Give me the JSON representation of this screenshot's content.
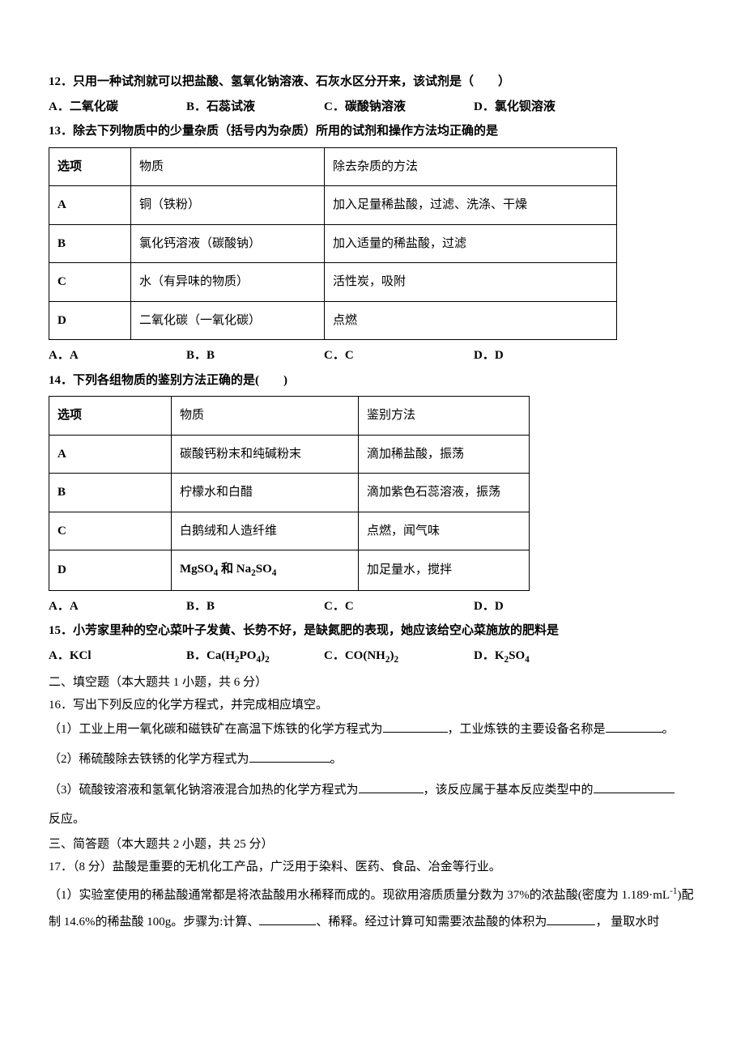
{
  "q12": {
    "text": "12．只用一种试剂就可以把盐酸、氢氧化钠溶液、石灰水区分开来，该试剂是（　　）",
    "a": "A．二氧化碳",
    "b": "B．石蕊试液",
    "c": "C．碳酸钠溶液",
    "d": "D．氯化钡溶液"
  },
  "q13": {
    "text": "13．除去下列物质中的少量杂质（括号内为杂质）所用的试剂和操作方法均正确的是",
    "header": {
      "c1": "选项",
      "c2": "物质",
      "c3": "除去杂质的方法"
    },
    "rows": [
      {
        "c1": "A",
        "c2": "铜（铁粉）",
        "c3": "加入足量稀盐酸，过滤、洗涤、干燥"
      },
      {
        "c1": "B",
        "c2": "氯化钙溶液（碳酸钠）",
        "c3": "加入适量的稀盐酸，过滤"
      },
      {
        "c1": "C",
        "c2": "水（有异味的物质）",
        "c3": "活性炭，吸附"
      },
      {
        "c1": "D",
        "c2": "二氧化碳（一氧化碳）",
        "c3": "点燃"
      }
    ],
    "a": "A．A",
    "b": "B．B",
    "c": "C．C",
    "d": "D．D"
  },
  "q14": {
    "text": "14．下列各组物质的鉴别方法正确的是(　　)",
    "header": {
      "c1": "选项",
      "c2": "物质",
      "c3": "鉴别方法"
    },
    "rows": [
      {
        "c1": "A",
        "c2": "碳酸钙粉末和纯碱粉末",
        "c3": "滴加稀盐酸，振荡"
      },
      {
        "c1": "B",
        "c2": "柠檬水和白醋",
        "c3": "滴加紫色石蕊溶液，振荡"
      },
      {
        "c1": "C",
        "c2": "白鹅绒和人造纤维",
        "c3": "点燃，闻气味"
      },
      {
        "c1": "D",
        "c2_html": "MgSO<sub>4</sub> 和 Na<sub>2</sub>SO<sub>4</sub>",
        "c3": "加足量水，搅拌"
      }
    ],
    "a": "A．A",
    "b": "B．B",
    "c": "C．C",
    "d": "D．D"
  },
  "q15": {
    "text": "15．小芳家里种的空心菜叶子发黄、长势不好，是缺氮肥的表现，她应该给空心菜施放的肥料是",
    "a": "A．KCl",
    "b_html": "B．Ca(H<sub>2</sub>PO<sub>4</sub>)<sub>2</sub>",
    "c_html": "C．CO(NH<sub>2</sub>)<sub>2</sub>",
    "d_html": "D．K<sub>2</sub>SO<sub>4</sub>"
  },
  "section2": "二、填空题（本大题共 1 小题，共 6 分）",
  "q16": {
    "text": "16．写出下列反应的化学方程式，并完成相应填空。",
    "p1a": "（1）工业上用一氧化碳和磁铁矿在高温下炼铁的化学方程式为",
    "p1b": "，工业炼铁的主要设备名称是",
    "p1c": "。",
    "p2a": "（2）稀硫酸除去铁锈的化学方程式为",
    "p2b": "。",
    "p3a": "（3）硫酸铵溶液和氢氧化钠溶液混合加热的化学方程式为",
    "p3b": "，该反应属于基本反应类型中的",
    "p3c": "反应。"
  },
  "section3": "三、简答题（本大题共 2 小题，共 25 分）",
  "q17": {
    "text": "17．（8 分）盐酸是重要的无机化工产品，广泛用于染料、医药、食品、冶金等行业。",
    "p1a_html": "（1）实验室使用的稀盐酸通常都是将浓盐酸用水稀释而成的。现欲用溶质质量分数为 37%的浓盐酸(密度为 1.189·mL<sup>-1</sup>)配制 14.6%的稀盐酸 100g。步骤为:计算、",
    "p1b": "、稀释。经过计算可知需要浓盐酸的体积为",
    "p1c": "， 量取水时"
  }
}
